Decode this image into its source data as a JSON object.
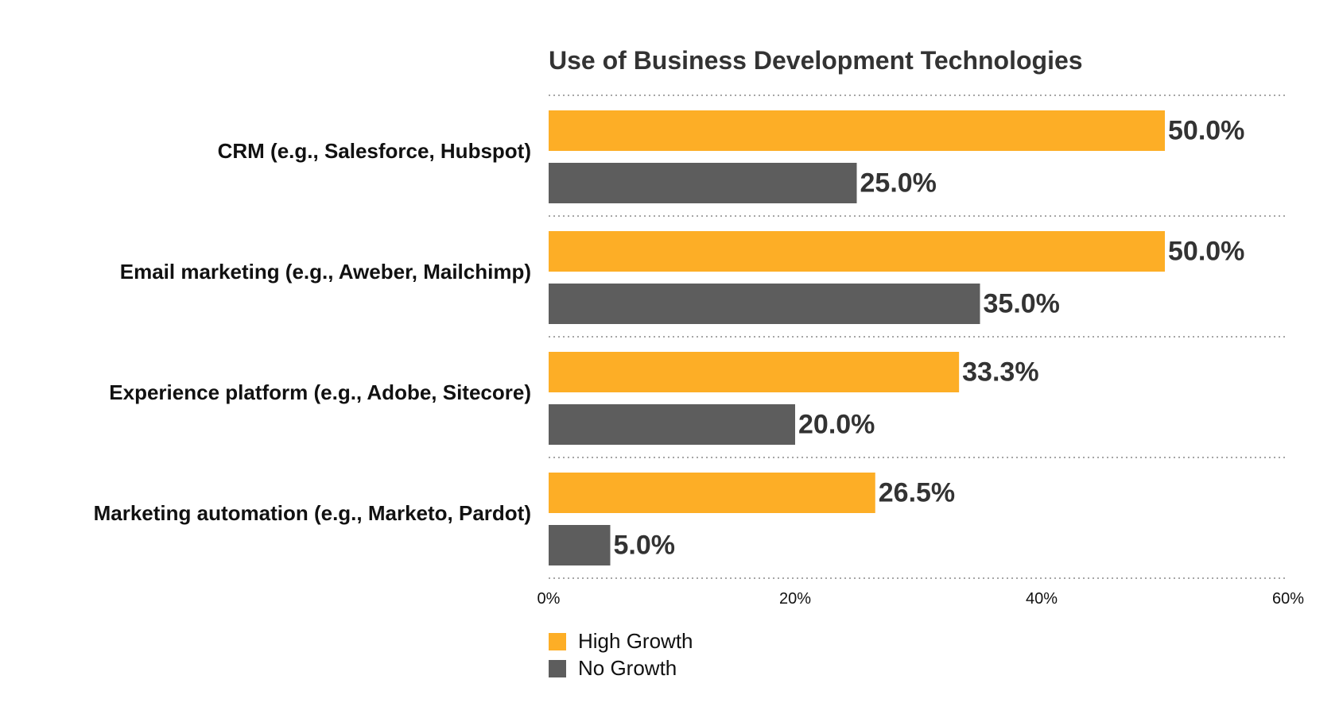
{
  "chart_data": {
    "type": "bar",
    "orientation": "horizontal",
    "title": "Use of Business Development Technologies",
    "categories": [
      "CRM (e.g., Salesforce, Hubspot)",
      "Email marketing (e.g., Aweber, Mailchimp)",
      "Experience platform (e.g., Adobe, Sitecore)",
      "Marketing automation (e.g., Marketo, Pardot)"
    ],
    "series": [
      {
        "name": "High Growth",
        "color": "#FDAE26",
        "values": [
          50.0,
          50.0,
          33.3,
          26.5
        ],
        "labels": [
          "50.0%",
          "50.0%",
          "33.3%",
          "26.5%"
        ]
      },
      {
        "name": "No Growth",
        "color": "#5D5D5D",
        "values": [
          25.0,
          35.0,
          20.0,
          5.0
        ],
        "labels": [
          "25.0%",
          "35.0%",
          "20.0%",
          "5.0%"
        ]
      }
    ],
    "xlim": [
      0,
      60
    ],
    "xticks": [
      0,
      20,
      40,
      60
    ],
    "xtick_labels": [
      "0%",
      "20%",
      "40%",
      "60%"
    ],
    "xlabel": "",
    "ylabel": "",
    "grid": "dotted horizontal separators between categories",
    "legend": {
      "position": "bottom-left",
      "entries": [
        "High Growth",
        "No Growth"
      ]
    }
  }
}
